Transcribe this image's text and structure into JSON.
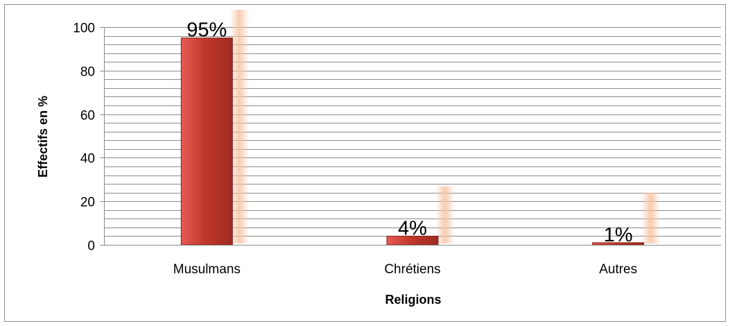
{
  "chart_data": {
    "type": "bar",
    "title": "",
    "xlabel": "Religions",
    "ylabel": "Effectifs en %",
    "categories": [
      "Musulmans",
      "Chrétiens",
      "Autres"
    ],
    "values": [
      95,
      4,
      1
    ],
    "data_labels": [
      "95%",
      "4%",
      "1%"
    ],
    "ylim": [
      0,
      100
    ],
    "y_major_ticks": [
      0,
      20,
      40,
      60,
      80,
      100
    ],
    "y_minor_step": 4,
    "grid": true,
    "legend": "none",
    "colors": {
      "bar_top": "#e85a55",
      "bar_mid": "#c0392b",
      "bar_bottom": "#9e2a22",
      "bar_edge": "#8b1f18",
      "grid": "#8c8c8c",
      "axis": "#8c8c8c",
      "label_glow": "#f7c3a3"
    }
  }
}
